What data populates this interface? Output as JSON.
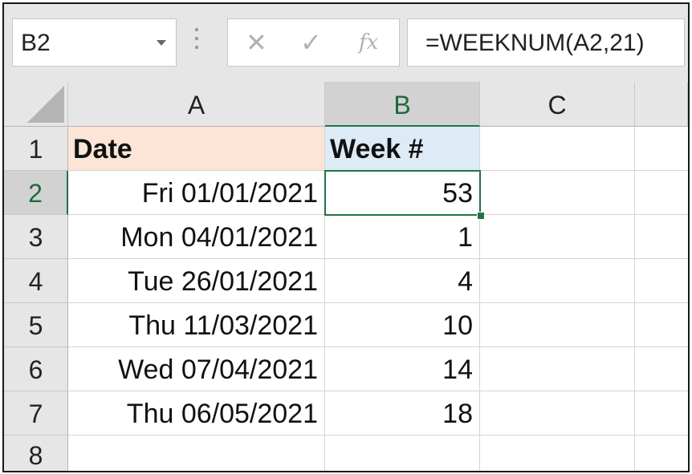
{
  "formula_bar": {
    "name_box": "B2",
    "cancel_glyph": "✕",
    "enter_glyph": "✓",
    "fx_label": "fx",
    "formula": "=WEEKNUM(A2,21)"
  },
  "columns": [
    "A",
    "B",
    "C"
  ],
  "rows": [
    {
      "num": "1",
      "a": "Date",
      "b": "Week #"
    },
    {
      "num": "2",
      "a": "Fri 01/01/2021",
      "b": "53"
    },
    {
      "num": "3",
      "a": "Mon 04/01/2021",
      "b": "1"
    },
    {
      "num": "4",
      "a": "Tue 26/01/2021",
      "b": "4"
    },
    {
      "num": "5",
      "a": "Thu 11/03/2021",
      "b": "10"
    },
    {
      "num": "6",
      "a": "Wed 07/04/2021",
      "b": "14"
    },
    {
      "num": "7",
      "a": "Thu 06/05/2021",
      "b": "18"
    },
    {
      "num": "8",
      "a": "",
      "b": ""
    }
  ],
  "colors": {
    "header_date_fill": "#fce4d6",
    "header_week_fill": "#ddebf7",
    "selection": "#217346"
  },
  "selected_cell": "B2"
}
